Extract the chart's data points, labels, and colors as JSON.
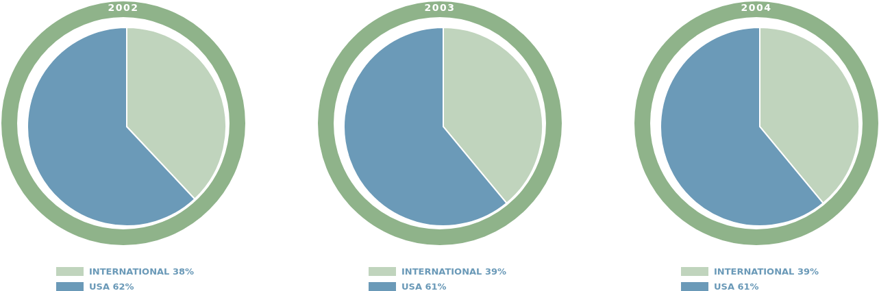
{
  "chart_data": [
    {
      "type": "pie",
      "title": "2002",
      "categories": [
        "INTERNATIONAL",
        "USA"
      ],
      "values": [
        38,
        62
      ],
      "value_labels": [
        "38%",
        "62%"
      ],
      "colors": [
        "#c0d4bd",
        "#6b9ab8"
      ],
      "legend": "bottom"
    },
    {
      "type": "pie",
      "title": "2003",
      "categories": [
        "INTERNATIONAL",
        "USA"
      ],
      "values": [
        39,
        61
      ],
      "value_labels": [
        "39%",
        "61%"
      ],
      "colors": [
        "#c0d4bd",
        "#6b9ab8"
      ],
      "legend": "bottom"
    },
    {
      "type": "pie",
      "title": "2004",
      "categories": [
        "INTERNATIONAL",
        "USA"
      ],
      "values": [
        39,
        61
      ],
      "value_labels": [
        "39%",
        "61%"
      ],
      "colors": [
        "#c0d4bd",
        "#6b9ab8"
      ],
      "legend": "bottom"
    }
  ]
}
